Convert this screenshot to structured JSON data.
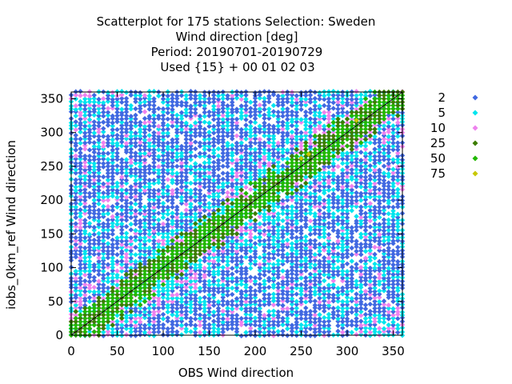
{
  "chart_data": {
    "type": "scatter",
    "title_lines": [
      "Scatterplot for  175 stations Selection: Sweden",
      "Wind direction [deg]",
      "Period: 20190701-20190729",
      "Used {15} + 00 01 02 03"
    ],
    "xlabel": "OBS Wind direction",
    "ylabel": "iobs_0km_ref Wind direction",
    "xlim": [
      0,
      360
    ],
    "ylim": [
      0,
      360
    ],
    "xticks": [
      "0",
      "50",
      "100",
      "150",
      "200",
      "250",
      "300",
      "350"
    ],
    "yticks": [
      "0",
      "50",
      "100",
      "150",
      "200",
      "250",
      "300",
      "350"
    ],
    "grid": false,
    "legend_position": "right",
    "diagonal_line": true,
    "series": [
      {
        "name": "2",
        "color": "#4169e1",
        "marker": "diamond"
      },
      {
        "name": "5",
        "color": "#00e5ee",
        "marker": "diamond"
      },
      {
        "name": "10",
        "color": "#ee82ee",
        "marker": "diamond"
      },
      {
        "name": "25",
        "color": "#3c7d00",
        "marker": "diamond"
      },
      {
        "name": "50",
        "color": "#22b800",
        "marker": "diamond"
      },
      {
        "name": "75",
        "color": "#c8c800",
        "marker": "diamond"
      }
    ],
    "observation_columns": [
      0,
      5,
      10,
      15,
      20,
      25,
      30,
      35,
      40,
      45,
      50,
      55,
      60,
      65,
      70,
      75,
      80,
      85,
      90,
      95,
      100,
      105,
      110,
      115,
      120,
      125,
      130,
      135,
      140,
      145,
      150,
      155,
      160,
      165,
      170,
      175,
      180,
      185,
      190,
      195,
      200,
      205,
      210,
      215,
      220,
      225,
      230,
      235,
      240,
      245,
      250,
      255,
      260,
      265,
      270,
      275,
      280,
      285,
      290,
      295,
      300,
      305,
      310,
      315,
      320,
      325,
      330,
      335,
      340,
      345,
      350,
      355,
      360
    ]
  }
}
